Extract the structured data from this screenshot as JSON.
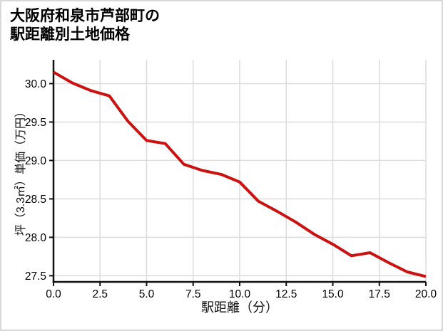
{
  "page": {
    "background": "#ffffff",
    "border_color": "#d8d8d8"
  },
  "title": {
    "line1": "大阪府和泉市芦部町の",
    "line2": "駅距離別土地価格"
  },
  "chart_data": {
    "type": "line",
    "title": "大阪府和泉市芦部町の駅距離別土地価格",
    "xlabel": "駅距離（分）",
    "ylabel": "坪（3.3㎡）単価（万円）",
    "x": [
      0,
      1,
      2,
      3,
      4,
      5,
      6,
      7,
      8,
      9,
      10,
      11,
      12,
      13,
      14,
      15,
      16,
      17,
      18,
      19,
      20
    ],
    "values": [
      30.15,
      30.01,
      29.91,
      29.84,
      29.51,
      29.26,
      29.22,
      28.95,
      28.87,
      28.82,
      28.72,
      28.47,
      28.34,
      28.2,
      28.04,
      27.91,
      27.76,
      27.8,
      27.67,
      27.55,
      27.49
    ],
    "xlim": [
      0,
      20
    ],
    "ylim": [
      27.42,
      30.31
    ],
    "x_tick_values": [
      0,
      2.5,
      5,
      7.5,
      10,
      12.5,
      15,
      17.5,
      20
    ],
    "x_tick_labels": [
      "0.0",
      "2.5",
      "5.0",
      "7.5",
      "10.0",
      "12.5",
      "15.0",
      "17.5",
      "20.0"
    ],
    "y_tick_values": [
      27.5,
      28.0,
      28.5,
      29.0,
      29.5,
      30.0
    ],
    "y_tick_labels": [
      "27.5",
      "28.0",
      "28.5",
      "29.0",
      "29.5",
      "30.0"
    ],
    "grid": true,
    "legend": "none",
    "line_color": "#cc1111",
    "grid_color": "#dcdcdc",
    "axis_color": "#111111",
    "tick_label_color": "#000000"
  }
}
